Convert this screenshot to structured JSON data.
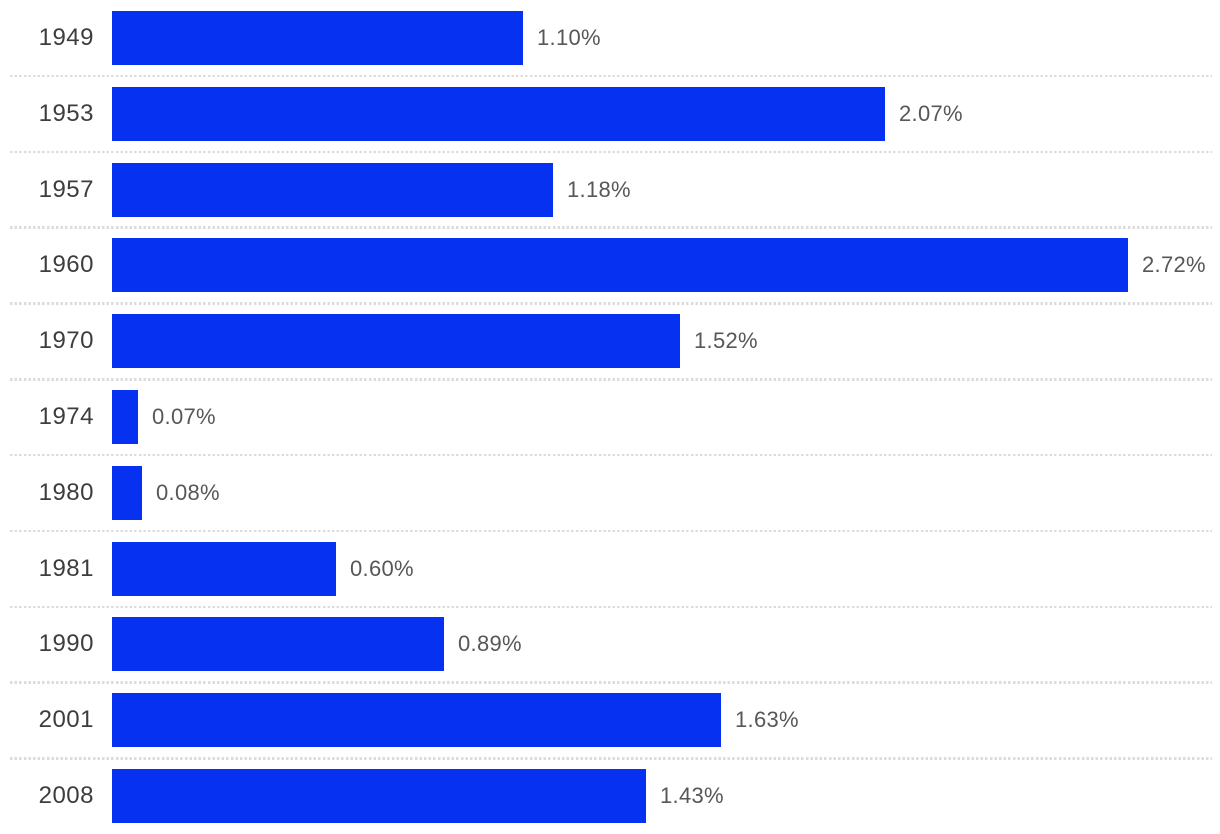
{
  "chart_data": {
    "type": "bar",
    "orientation": "horizontal",
    "categories": [
      "1949",
      "1953",
      "1957",
      "1960",
      "1970",
      "1974",
      "1980",
      "1981",
      "1990",
      "2001",
      "2008"
    ],
    "values": [
      1.1,
      2.07,
      1.18,
      2.72,
      1.52,
      0.07,
      0.08,
      0.6,
      0.89,
      1.63,
      1.43
    ],
    "value_labels": [
      "1.10%",
      "2.07%",
      "1.18%",
      "2.72%",
      "1.52%",
      "0.07%",
      "0.08%",
      "0.60%",
      "0.89%",
      "1.63%",
      "1.43%"
    ],
    "title": "",
    "xlabel": "",
    "ylabel": "",
    "xlim": [
      0,
      2.72
    ],
    "grid": "dotted-row-separators",
    "legend": "none",
    "bar_color": "#0631f0",
    "year_label_color": "#3d3d3d",
    "value_label_color": "#575757",
    "separator_color": "#dcdcdc",
    "background_color": "#ffffff"
  }
}
